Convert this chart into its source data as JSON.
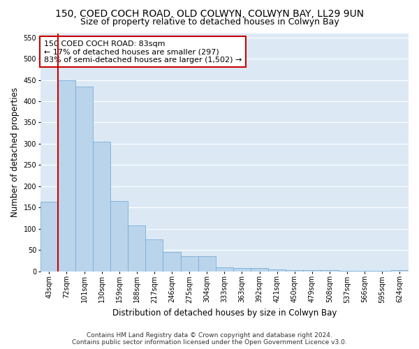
{
  "title": "150, COED COCH ROAD, OLD COLWYN, COLWYN BAY, LL29 9UN",
  "subtitle": "Size of property relative to detached houses in Colwyn Bay",
  "xlabel": "Distribution of detached houses by size in Colwyn Bay",
  "ylabel": "Number of detached properties",
  "categories": [
    "43sqm",
    "72sqm",
    "101sqm",
    "130sqm",
    "159sqm",
    "188sqm",
    "217sqm",
    "246sqm",
    "275sqm",
    "304sqm",
    "333sqm",
    "363sqm",
    "392sqm",
    "421sqm",
    "450sqm",
    "479sqm",
    "508sqm",
    "537sqm",
    "566sqm",
    "595sqm",
    "624sqm"
  ],
  "values": [
    163,
    450,
    435,
    305,
    165,
    107,
    75,
    45,
    35,
    35,
    9,
    7,
    8,
    5,
    3,
    2,
    2,
    1,
    1,
    1,
    3
  ],
  "bar_color": "#bad4ec",
  "bar_edge_color": "#7aadd4",
  "highlight_color": "#cc0000",
  "highlight_index": 1,
  "annotation_line1": "150 COED COCH ROAD: 83sqm",
  "annotation_line2": "← 17% of detached houses are smaller (297)",
  "annotation_line3": "83% of semi-detached houses are larger (1,502) →",
  "annotation_box_color": "#ffffff",
  "annotation_box_edge": "#cc0000",
  "ylim": [
    0,
    560
  ],
  "yticks": [
    0,
    50,
    100,
    150,
    200,
    250,
    300,
    350,
    400,
    450,
    500,
    550
  ],
  "footer_line1": "Contains HM Land Registry data © Crown copyright and database right 2024.",
  "footer_line2": "Contains public sector information licensed under the Open Government Licence v3.0.",
  "fig_background": "#ffffff",
  "plot_background": "#dce9f5",
  "grid_color": "#ffffff",
  "title_fontsize": 10,
  "subtitle_fontsize": 9,
  "axis_label_fontsize": 8.5,
  "tick_fontsize": 7,
  "annotation_fontsize": 8,
  "footer_fontsize": 6.5
}
